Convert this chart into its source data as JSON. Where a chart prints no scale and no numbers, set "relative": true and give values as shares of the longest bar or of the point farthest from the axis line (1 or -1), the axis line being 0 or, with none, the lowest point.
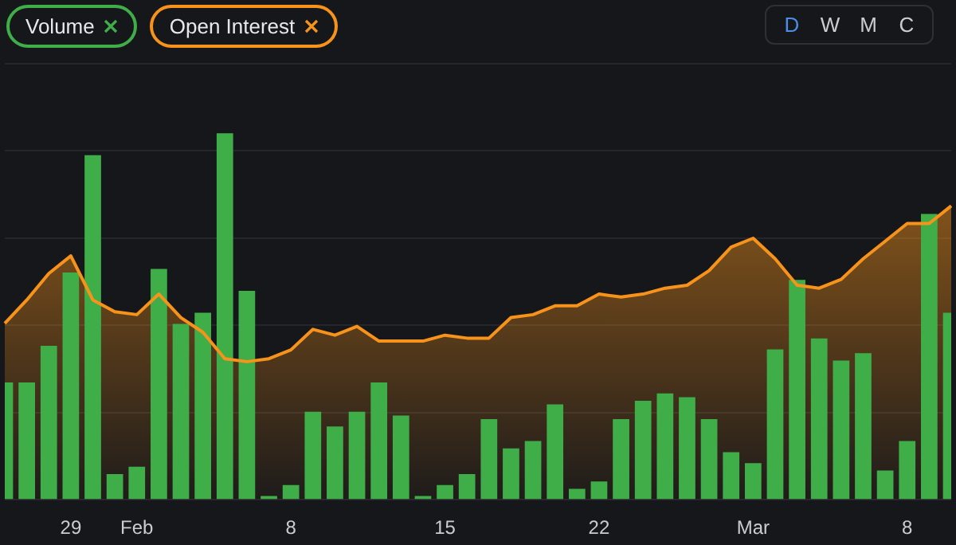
{
  "chart_data": {
    "type": "bar",
    "relative": true,
    "legend": "top left",
    "grid": "y",
    "annotations": [
      "D",
      "W",
      "M",
      "C"
    ],
    "categories": [
      null,
      null,
      null,
      "29",
      null,
      null,
      "Feb",
      null,
      null,
      null,
      null,
      null,
      null,
      "8",
      null,
      null,
      null,
      null,
      null,
      null,
      "15",
      null,
      null,
      null,
      null,
      null,
      null,
      "22",
      null,
      null,
      null,
      null,
      null,
      null,
      "Mar",
      null,
      null,
      null,
      null,
      null,
      null,
      "8",
      null,
      null
    ],
    "series": [
      {
        "name": "Volume",
        "color": "#3fae49",
        "values": [
          0.32,
          0.32,
          0.42,
          0.62,
          0.94,
          0.07,
          0.09,
          0.63,
          0.48,
          0.51,
          1,
          0.57,
          0.01,
          0.04,
          0.24,
          0.2,
          0.24,
          0.32,
          0.23,
          0.01,
          0.04,
          0.07,
          0.22,
          0.14,
          0.16,
          0.26,
          0.03,
          0.05,
          0.22,
          0.27,
          0.29,
          0.28,
          0.22,
          0.13,
          0.1,
          0.41,
          0.6,
          0.44,
          0.38,
          0.4,
          0.08,
          0.16,
          0.78,
          0.51
        ]
      },
      {
        "name": "Open Interest",
        "type": "area",
        "axis": "y2",
        "color": "#f7931a",
        "values": [
          0.6,
          0.68,
          0.77,
          0.83,
          0.68,
          0.64,
          0.63,
          0.7,
          0.62,
          0.57,
          0.48,
          0.47,
          0.48,
          0.51,
          0.58,
          0.56,
          0.59,
          0.54,
          0.54,
          0.54,
          0.56,
          0.55,
          0.55,
          0.62,
          0.63,
          0.66,
          0.66,
          0.7,
          0.69,
          0.7,
          0.72,
          0.73,
          0.78,
          0.86,
          0.89,
          0.82,
          0.73,
          0.72,
          0.75,
          0.82,
          0.88,
          0.94,
          0.94,
          1
        ]
      }
    ]
  }
}
